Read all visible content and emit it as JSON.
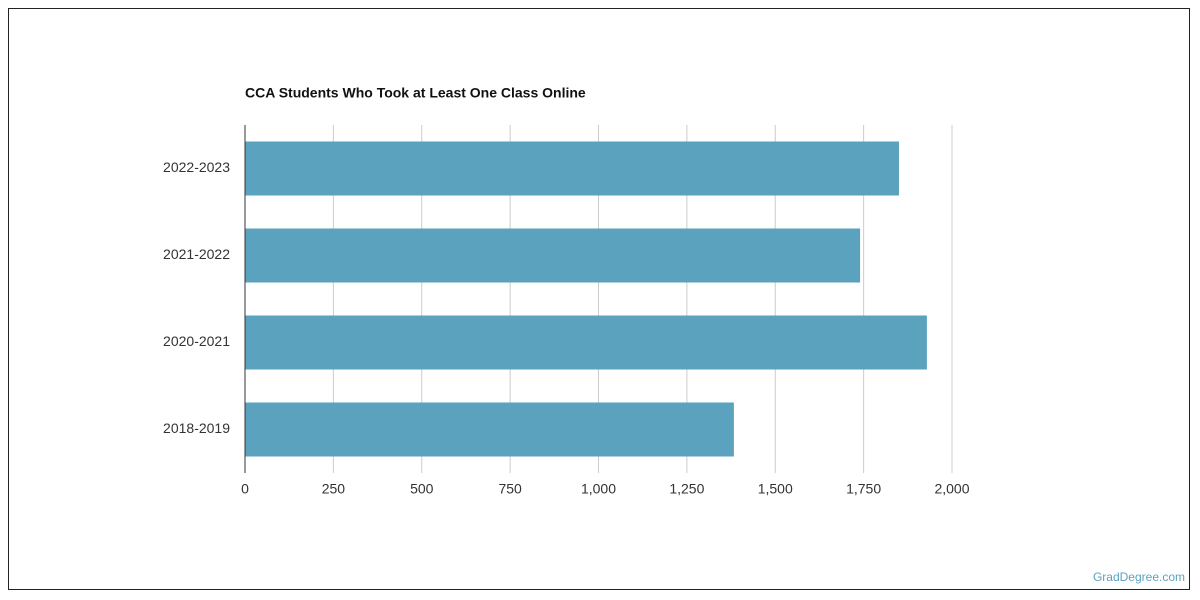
{
  "chart_data": {
    "type": "barh",
    "title": "CCA Students Who Took at Least One Class Online",
    "categories": [
      "2022-2023",
      "2021-2022",
      "2020-2021",
      "2018-2019"
    ],
    "values": [
      1850,
      1740,
      1929,
      1383
    ],
    "color": "#5ba2be",
    "xlim": [
      0,
      2000
    ],
    "xticks": [
      0,
      250,
      500,
      750,
      {
        "value": 1000,
        "label": "1,000"
      },
      {
        "value": 1250,
        "label": "1,250"
      },
      {
        "value": 1500,
        "label": "1,500"
      },
      {
        "value": 1750,
        "label": "1,750"
      },
      {
        "value": 2000,
        "label": "2,000"
      }
    ],
    "grid": true
  },
  "credit": "GradDegree.com"
}
